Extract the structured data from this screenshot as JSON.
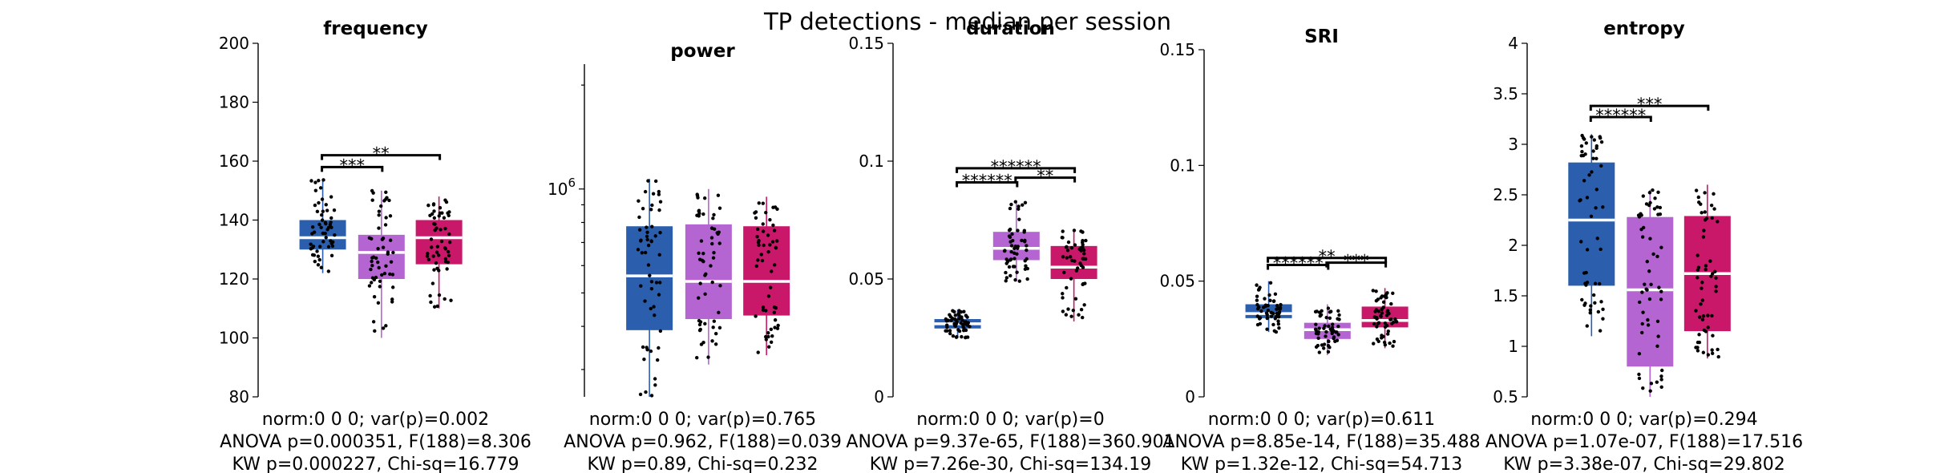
{
  "figure_title": "TP detections - median per session",
  "chart_data": [
    {
      "type": "box",
      "title": "frequency",
      "ylim": [
        80,
        200
      ],
      "yscale": "linear",
      "yticks": [
        80,
        100,
        120,
        140,
        160,
        180,
        200
      ],
      "ytick_labels": [
        "80",
        "100",
        "120",
        "140",
        "160",
        "180",
        "200"
      ],
      "groups": [
        {
          "color": "#2b5fad",
          "q1": 130,
          "median": 134,
          "q3": 140,
          "whisker_low": 122,
          "whisker_high": 154
        },
        {
          "color": "#b565d2",
          "q1": 120,
          "median": 129,
          "q3": 135,
          "whisker_low": 100,
          "whisker_high": 150
        },
        {
          "color": "#c9186a",
          "q1": 125,
          "median": 134,
          "q3": 140,
          "whisker_low": 110,
          "whisker_high": 148
        }
      ],
      "significance": [
        {
          "from": 0,
          "to": 1,
          "y": 158,
          "label": "***"
        },
        {
          "from": 0,
          "to": 2,
          "y": 162,
          "label": "**"
        }
      ],
      "stats": [
        "norm:0  0  0; var(p)=0.002",
        "ANOVA p=0.000351, F(188)=8.306",
        "KW p=0.000227, Chi-sq=16.779"
      ]
    },
    {
      "type": "box",
      "title": "power",
      "ylim": [
        250000,
        2300000
      ],
      "yscale": "log",
      "yticks": [
        1000000
      ],
      "ytick_labels": [
        "10^6"
      ],
      "groups": [
        {
          "color": "#2b5fad",
          "q1": 390000,
          "median": 560000,
          "q3": 780000,
          "whisker_low": 250000,
          "whisker_high": 1070000
        },
        {
          "color": "#b565d2",
          "q1": 420000,
          "median": 540000,
          "q3": 790000,
          "whisker_low": 310000,
          "whisker_high": 1000000
        },
        {
          "color": "#c9186a",
          "q1": 430000,
          "median": 540000,
          "q3": 780000,
          "whisker_low": 330000,
          "whisker_high": 950000
        }
      ],
      "significance": [],
      "stats": [
        "norm:0  0  0; var(p)=0.765",
        "ANOVA p=0.962, F(188)=0.039",
        "KW p=0.89, Chi-sq=0.232"
      ]
    },
    {
      "type": "box",
      "title": "duration",
      "ylim": [
        0,
        0.15
      ],
      "yscale": "linear",
      "yticks": [
        0,
        0.05,
        0.1,
        0.15
      ],
      "ytick_labels": [
        "0",
        "0.05",
        "0.1",
        "0.15"
      ],
      "groups": [
        {
          "color": "#2b5fad",
          "q1": 0.029,
          "median": 0.031,
          "q3": 0.033,
          "whisker_low": 0.025,
          "whisker_high": 0.037
        },
        {
          "color": "#b565d2",
          "q1": 0.058,
          "median": 0.063,
          "q3": 0.07,
          "whisker_low": 0.049,
          "whisker_high": 0.083
        },
        {
          "color": "#c9186a",
          "q1": 0.05,
          "median": 0.055,
          "q3": 0.064,
          "whisker_low": 0.032,
          "whisker_high": 0.071
        }
      ],
      "significance": [
        {
          "from": 0,
          "to": 1,
          "y": 0.091,
          "label": "******"
        },
        {
          "from": 1,
          "to": 2,
          "y": 0.093,
          "label": "**"
        },
        {
          "from": 0,
          "to": 2,
          "y": 0.097,
          "label": "******"
        }
      ],
      "stats": [
        "norm:0  0  0; var(p)=0",
        "ANOVA p=9.37e-65, F(188)=360.901",
        "KW p=7.26e-30, Chi-sq=134.19"
      ]
    },
    {
      "type": "box",
      "title": "SRI",
      "ylim": [
        0,
        0.15
      ],
      "yscale": "linear",
      "yticks": [
        0,
        0.05,
        0.1,
        0.15
      ],
      "ytick_labels": [
        "0",
        "0.05",
        "0.1",
        "0.15"
      ],
      "groups": [
        {
          "color": "#2b5fad",
          "q1": 0.034,
          "median": 0.036,
          "q3": 0.04,
          "whisker_low": 0.028,
          "whisker_high": 0.05
        },
        {
          "color": "#b565d2",
          "q1": 0.025,
          "median": 0.029,
          "q3": 0.032,
          "whisker_low": 0.018,
          "whisker_high": 0.04
        },
        {
          "color": "#c9186a",
          "q1": 0.03,
          "median": 0.033,
          "q3": 0.039,
          "whisker_low": 0.021,
          "whisker_high": 0.047
        }
      ],
      "significance": [
        {
          "from": 0,
          "to": 1,
          "y": 0.057,
          "label": "******"
        },
        {
          "from": 1,
          "to": 2,
          "y": 0.058,
          "label": "***"
        },
        {
          "from": 0,
          "to": 2,
          "y": 0.06,
          "label": "**"
        }
      ],
      "stats": [
        "norm:0  0  0; var(p)=0.611",
        "ANOVA p=8.85e-14, F(188)=35.488",
        "KW p=1.32e-12, Chi-sq=54.713"
      ]
    },
    {
      "type": "box",
      "title": "entropy",
      "ylim": [
        0.5,
        4
      ],
      "yscale": "linear",
      "yticks": [
        0.5,
        1,
        1.5,
        2,
        2.5,
        3,
        3.5,
        4
      ],
      "ytick_labels": [
        "0.5",
        "1",
        "1.5",
        "2",
        "2.5",
        "3",
        "3.5",
        "4"
      ],
      "groups": [
        {
          "color": "#2b5fad",
          "q1": 1.6,
          "median": 2.25,
          "q3": 2.82,
          "whisker_low": 1.1,
          "whisker_high": 3.1
        },
        {
          "color": "#b565d2",
          "q1": 0.8,
          "median": 1.56,
          "q3": 2.28,
          "whisker_low": 0.5,
          "whisker_high": 2.55
        },
        {
          "color": "#c9186a",
          "q1": 1.15,
          "median": 1.72,
          "q3": 2.29,
          "whisker_low": 0.88,
          "whisker_high": 2.6
        }
      ],
      "significance": [
        {
          "from": 0,
          "to": 1,
          "y": 3.27,
          "label": "******"
        },
        {
          "from": 0,
          "to": 2,
          "y": 3.38,
          "label": "***"
        }
      ],
      "stats": [
        "norm:0  0  0; var(p)=0.294",
        "ANOVA p=1.07e-07, F(188)=17.516",
        "KW p=3.38e-07, Chi-sq=29.802"
      ]
    }
  ]
}
